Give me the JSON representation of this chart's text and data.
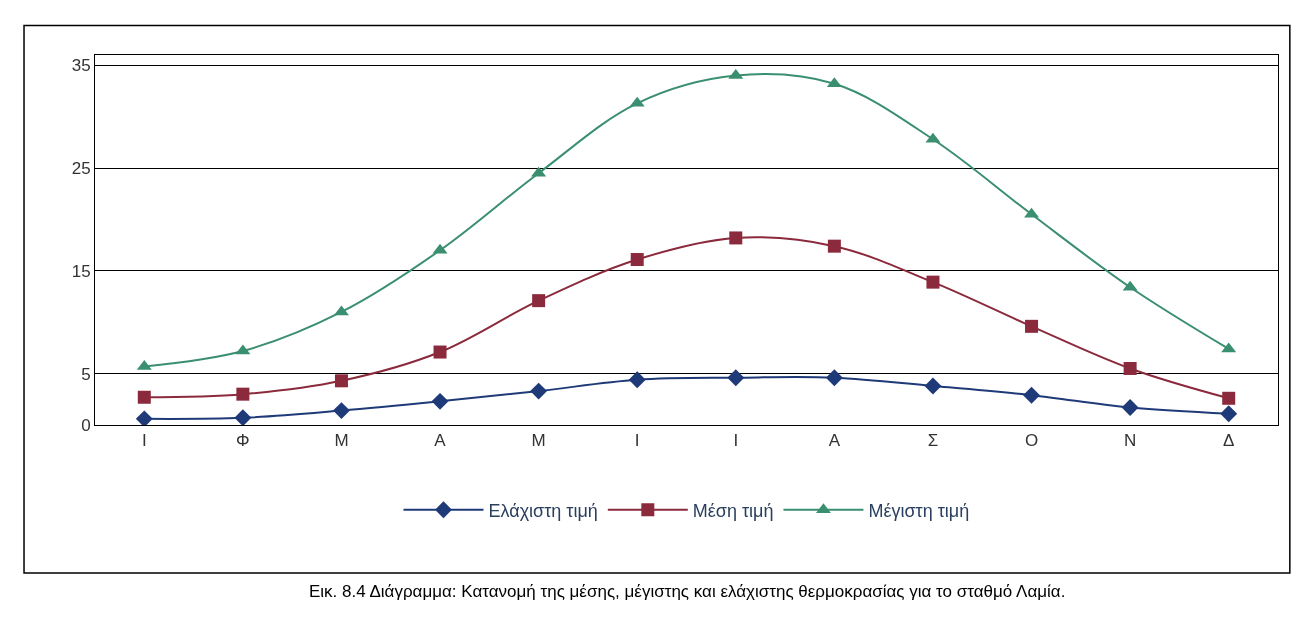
{
  "chart_data": {
    "type": "line",
    "categories": [
      "Ι",
      "Φ",
      "Μ",
      "Α",
      "Μ",
      "Ι",
      "Ι",
      "Α",
      "Σ",
      "Ο",
      "Ν",
      "Δ"
    ],
    "series": [
      {
        "name": "Ελάχιστη τιμή",
        "color": "#1f3a78",
        "marker": "diamond",
        "values": [
          0.6,
          0.7,
          1.4,
          2.3,
          3.3,
          4.4,
          4.6,
          4.6,
          3.8,
          2.9,
          1.7,
          1.1
        ]
      },
      {
        "name": "Μέση τιμή",
        "color": "#8b2a3c",
        "marker": "square",
        "values": [
          2.7,
          3.0,
          4.3,
          7.1,
          12.1,
          16.1,
          18.2,
          17.4,
          13.9,
          9.6,
          5.5,
          2.6
        ]
      },
      {
        "name": "Μέγιστη τιμή",
        "color": "#3a8f70",
        "marker": "triangle",
        "values": [
          5.7,
          7.2,
          11.0,
          17.0,
          24.5,
          31.3,
          34.0,
          33.2,
          27.8,
          20.5,
          13.4,
          7.4
        ]
      }
    ],
    "ylim": [
      0,
      36
    ],
    "yticks": [
      0,
      5,
      15,
      25,
      35
    ],
    "grid": "y",
    "legend": "bottom",
    "annotations": [
      "Εικ. 8.4 Διάγραμμα: Κατανομή της μέσης, μέγιστης και ελάχιστης θερμοκρασίας για το σταθμό Λαμία."
    ]
  }
}
